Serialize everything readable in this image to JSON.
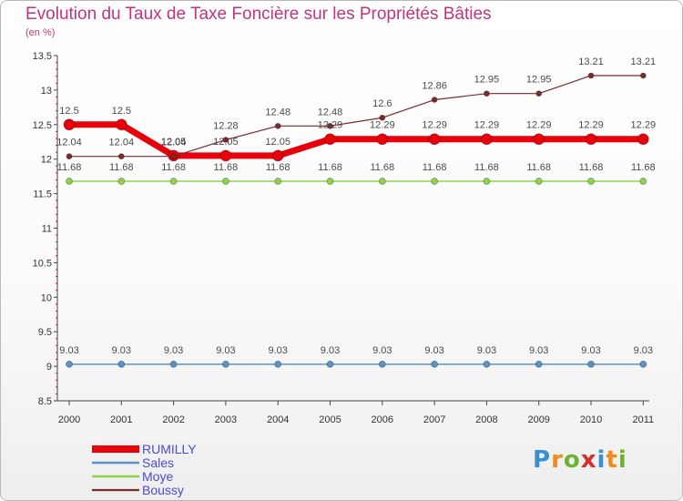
{
  "brand": {
    "letters": [
      "P",
      "r",
      "o",
      "x",
      "i",
      "t",
      "i"
    ]
  },
  "chart_data": {
    "type": "line",
    "title": "Evolution du Taux de Taxe Foncière sur les Propriétés Bâties",
    "subtitle": "(en %)",
    "xlabel": "",
    "ylabel": "",
    "x": [
      "2000",
      "2001",
      "2002",
      "2003",
      "2004",
      "2005",
      "2006",
      "2007",
      "2008",
      "2009",
      "2010",
      "2011"
    ],
    "ylim": [
      8.5,
      13.5
    ],
    "yticks": [
      "8.5",
      "9",
      "9.5",
      "10",
      "10.5",
      "11",
      "11.5",
      "12",
      "12.5",
      "13",
      "13.5"
    ],
    "grid": false,
    "legend_position": "bottom-left",
    "series": [
      {
        "name": "RUMILLY",
        "color": "#e8000b",
        "values": [
          12.5,
          12.5,
          12.05,
          12.05,
          12.05,
          12.29,
          12.29,
          12.29,
          12.29,
          12.29,
          12.29,
          12.29
        ],
        "labels": [
          "12.5",
          "12.5",
          "12.05",
          "12.05",
          "12.05",
          "12.29",
          "12.29",
          "12.29",
          "12.29",
          "12.29",
          "12.29",
          "12.29"
        ]
      },
      {
        "name": "Sales",
        "color": "#5b93c7",
        "values": [
          9.03,
          9.03,
          9.03,
          9.03,
          9.03,
          9.03,
          9.03,
          9.03,
          9.03,
          9.03,
          9.03,
          9.03
        ],
        "labels": [
          "9.03",
          "9.03",
          "9.03",
          "9.03",
          "9.03",
          "9.03",
          "9.03",
          "9.03",
          "9.03",
          "9.03",
          "9.03",
          "9.03"
        ]
      },
      {
        "name": "Moye",
        "color": "#8fd34d",
        "values": [
          11.68,
          11.68,
          11.68,
          11.68,
          11.68,
          11.68,
          11.68,
          11.68,
          11.68,
          11.68,
          11.68,
          11.68
        ],
        "labels": [
          "11.68",
          "11.68",
          "11.68",
          "11.68",
          "11.68",
          "11.68",
          "11.68",
          "11.68",
          "11.68",
          "11.68",
          "11.68",
          "11.68"
        ]
      },
      {
        "name": "Boussy",
        "color": "#7a2b2b",
        "values": [
          12.04,
          12.04,
          12.04,
          12.28,
          12.48,
          12.48,
          12.6,
          12.86,
          12.95,
          12.95,
          13.21,
          13.21
        ],
        "labels": [
          "12.04",
          "12.04",
          "12.04",
          "12.28",
          "12.48",
          "12.48",
          "12.6",
          "12.86",
          "12.95",
          "12.95",
          "13.21",
          "13.21"
        ]
      }
    ]
  }
}
